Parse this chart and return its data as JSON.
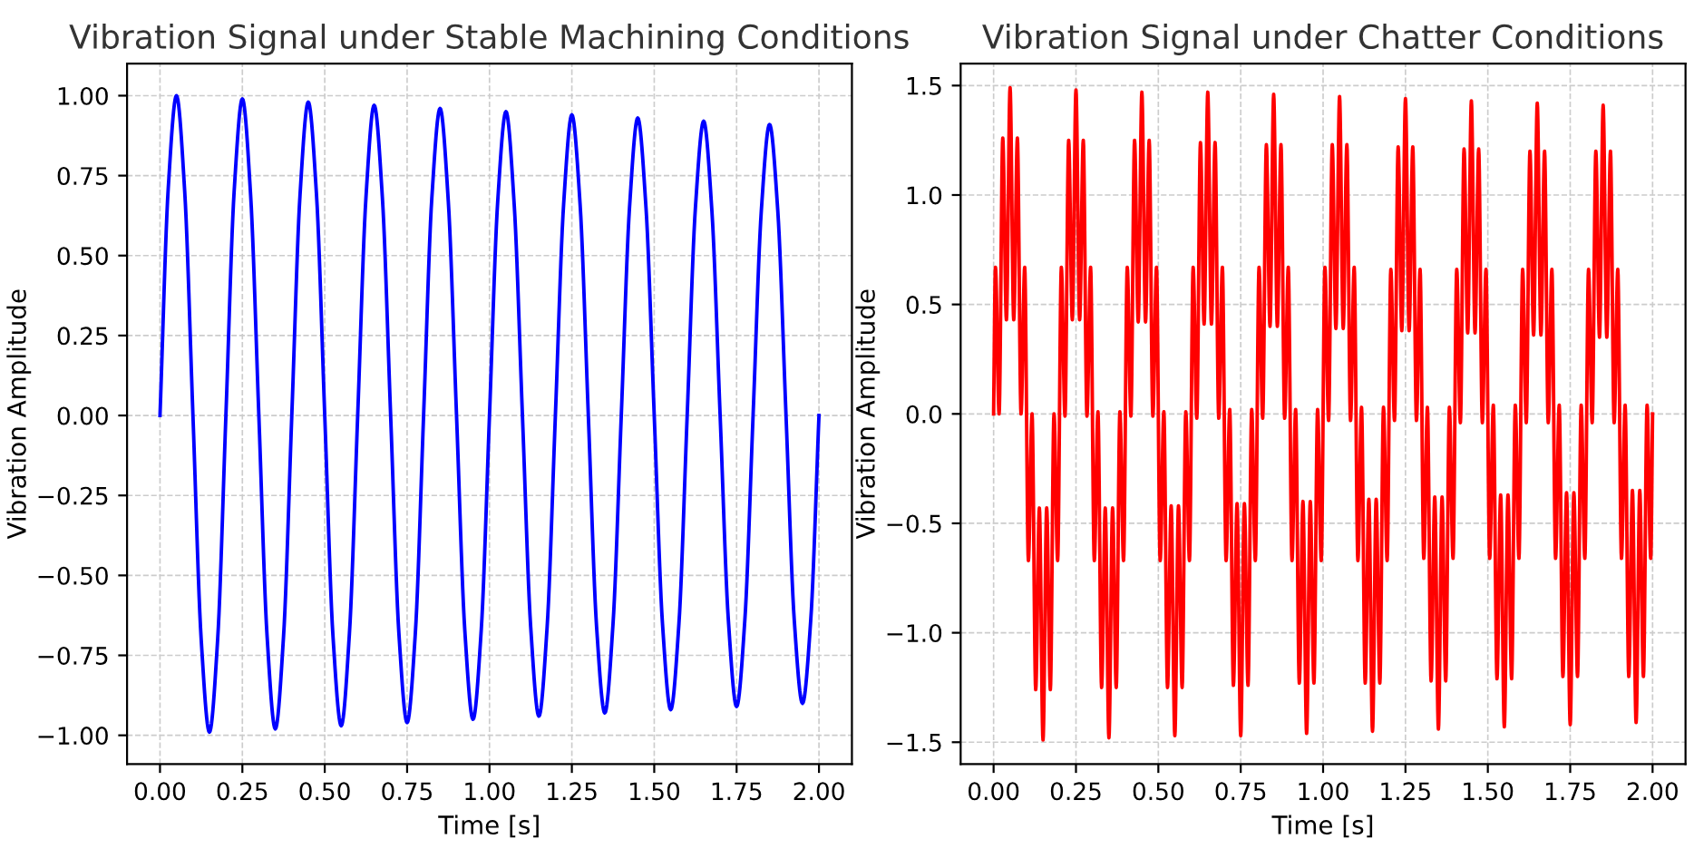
{
  "chart_data": [
    {
      "type": "line",
      "title": "Vibration Signal under Stable Machining Conditions",
      "xlabel": "Time [s]",
      "ylabel": "Vibration Amplitude",
      "grid": true,
      "line_style": "solid",
      "xlim": [
        -0.1,
        2.1
      ],
      "ylim": [
        -1.09,
        1.1
      ],
      "xticks": [
        {
          "value": 0,
          "label": "0.00"
        },
        {
          "value": 0.25,
          "label": "0.25"
        },
        {
          "value": 0.5,
          "label": "0.50"
        },
        {
          "value": 0.75,
          "label": "0.75"
        },
        {
          "value": 1,
          "label": "1.00"
        },
        {
          "value": 1.25,
          "label": "1.25"
        },
        {
          "value": 1.5,
          "label": "1.50"
        },
        {
          "value": 1.75,
          "label": "1.75"
        },
        {
          "value": 2,
          "label": "2.00"
        }
      ],
      "yticks": [
        {
          "value": -1,
          "label": "−1.00"
        },
        {
          "value": -0.75,
          "label": "−0.75"
        },
        {
          "value": -0.5,
          "label": "−0.50"
        },
        {
          "value": -0.25,
          "label": "−0.25"
        },
        {
          "value": 0,
          "label": "0.00"
        },
        {
          "value": 0.25,
          "label": "0.25"
        },
        {
          "value": 0.5,
          "label": "0.50"
        },
        {
          "value": 0.75,
          "label": "0.75"
        },
        {
          "value": 1,
          "label": "1.00"
        }
      ],
      "series": [
        {
          "color": "#0000ff",
          "x": [
            0,
            0.025,
            0.05,
            0.075,
            0.1,
            0.125,
            0.15,
            0.175,
            0.2,
            0.225,
            0.25,
            0.275,
            0.3,
            0.325,
            0.35,
            0.375,
            0.4,
            0.425,
            0.45,
            0.475,
            0.5,
            0.525,
            0.55,
            0.575,
            0.6,
            0.625,
            0.65,
            0.675,
            0.7,
            0.725,
            0.75,
            0.775,
            0.8,
            0.825,
            0.85,
            0.875,
            0.9,
            0.925,
            0.95,
            0.975,
            1.0,
            1.025,
            1.05,
            1.075,
            1.1,
            1.125,
            1.15,
            1.175,
            1.2,
            1.225,
            1.25,
            1.275,
            1.3,
            1.325,
            1.35,
            1.375,
            1.4,
            1.425,
            1.45,
            1.475,
            1.5,
            1.525,
            1.55,
            1.575,
            1.6,
            1.625,
            1.65,
            1.675,
            1.7,
            1.725,
            1.75,
            1.775,
            1.8,
            1.825,
            1.85,
            1.875,
            1.9,
            1.925,
            1.95,
            1.975,
            2.0
          ],
          "values": [
            0,
            0.71,
            1.0,
            0.7,
            0,
            -0.7,
            -0.99,
            -0.7,
            0,
            0.7,
            0.99,
            0.69,
            0,
            -0.69,
            -0.98,
            -0.69,
            0,
            0.69,
            0.98,
            0.69,
            0,
            -0.69,
            -0.97,
            -0.68,
            0,
            0.68,
            0.97,
            0.68,
            0,
            -0.68,
            -0.96,
            -0.68,
            0,
            0.68,
            0.96,
            0.67,
            0,
            -0.67,
            -0.95,
            -0.67,
            0,
            0.67,
            0.95,
            0.66,
            0,
            -0.66,
            -0.94,
            -0.66,
            0,
            0.66,
            0.94,
            0.66,
            0,
            -0.66,
            -0.93,
            -0.65,
            0,
            0.65,
            0.93,
            0.65,
            0,
            -0.65,
            -0.92,
            -0.65,
            0,
            0.65,
            0.92,
            0.64,
            0,
            -0.64,
            -0.91,
            -0.64,
            0,
            0.64,
            0.91,
            0.64,
            0,
            -0.64,
            -0.9,
            -0.64,
            0
          ]
        }
      ]
    },
    {
      "type": "line",
      "title": "Vibration Signal under Chatter Conditions",
      "xlabel": "Time [s]",
      "ylabel": "Vibration Amplitude",
      "grid": true,
      "line_style": "solid",
      "xlim": [
        -0.1,
        2.1
      ],
      "ylim": [
        -1.6,
        1.6
      ],
      "xticks": [
        {
          "value": 0,
          "label": "0.00"
        },
        {
          "value": 0.25,
          "label": "0.25"
        },
        {
          "value": 0.5,
          "label": "0.50"
        },
        {
          "value": 0.75,
          "label": "0.75"
        },
        {
          "value": 1,
          "label": "1.00"
        },
        {
          "value": 1.25,
          "label": "1.25"
        },
        {
          "value": 1.5,
          "label": "1.50"
        },
        {
          "value": 1.75,
          "label": "1.75"
        },
        {
          "value": 2,
          "label": "2.00"
        }
      ],
      "yticks": [
        {
          "value": -1.5,
          "label": "−1.5"
        },
        {
          "value": -1,
          "label": "−1.0"
        },
        {
          "value": -0.5,
          "label": "−0.5"
        },
        {
          "value": 0,
          "label": "0.0"
        },
        {
          "value": 0.5,
          "label": "0.5"
        },
        {
          "value": 1,
          "label": "1.0"
        },
        {
          "value": 1.5,
          "label": "1.5"
        }
      ],
      "series": [
        {
          "color": "#ff0000",
          "x": [
            0,
            0.0056,
            0.0167,
            0.0278,
            0.0389,
            0.05,
            0.0611,
            0.0722,
            0.0833,
            0.0944,
            0.1056,
            0.1167,
            0.1278,
            0.1389,
            0.15,
            0.1611,
            0.1722,
            0.1833,
            0.1944,
            0.2056,
            0.2167,
            0.2278,
            0.2389,
            0.25,
            0.2611,
            0.2722,
            0.2833,
            0.2944,
            0.3056,
            0.3167,
            0.3278,
            0.3389,
            0.35,
            0.3611,
            0.3722,
            0.3833,
            0.3944,
            0.4056,
            0.4167,
            0.4278,
            0.4389,
            0.45,
            0.4611,
            0.4722,
            0.4833,
            0.4944,
            0.5056,
            0.5167,
            0.5278,
            0.5389,
            0.55,
            0.5611,
            0.5722,
            0.5833,
            0.5944,
            0.6056,
            0.6167,
            0.6278,
            0.6389,
            0.65,
            0.6611,
            0.6722,
            0.6833,
            0.6944,
            0.7056,
            0.7167,
            0.7278,
            0.7389,
            0.75,
            0.7611,
            0.7722,
            0.7833,
            0.7944,
            0.8056,
            0.8167,
            0.8278,
            0.8389,
            0.85,
            0.8611,
            0.8722,
            0.8833,
            0.8944,
            0.9056,
            0.9167,
            0.9278,
            0.9389,
            0.95,
            0.9611,
            0.9722,
            0.9833,
            0.9944,
            1.0056,
            1.0167,
            1.0278,
            1.0389,
            1.05,
            1.0611,
            1.0722,
            1.0833,
            1.0944,
            1.1056,
            1.1167,
            1.1278,
            1.1389,
            1.15,
            1.1611,
            1.1722,
            1.1833,
            1.1944,
            1.2056,
            1.2167,
            1.2278,
            1.2389,
            1.25,
            1.2611,
            1.2722,
            1.2833,
            1.2944,
            1.3056,
            1.3167,
            1.3278,
            1.3389,
            1.35,
            1.3611,
            1.3722,
            1.3833,
            1.3944,
            1.4056,
            1.4167,
            1.4278,
            1.4389,
            1.45,
            1.4611,
            1.4722,
            1.4833,
            1.4944,
            1.5056,
            1.5167,
            1.5278,
            1.5389,
            1.55,
            1.5611,
            1.5722,
            1.5833,
            1.5944,
            1.6056,
            1.6167,
            1.6278,
            1.6389,
            1.65,
            1.6611,
            1.6722,
            1.6833,
            1.6944,
            1.7056,
            1.7167,
            1.7278,
            1.7389,
            1.75,
            1.7611,
            1.7722,
            1.7833,
            1.7944,
            1.8056,
            1.8167,
            1.8278,
            1.8389,
            1.85,
            1.8611,
            1.8722,
            1.8833,
            1.8944,
            1.9056,
            1.9167,
            1.9278,
            1.9389,
            1.95,
            1.9611,
            1.9722,
            1.9833,
            1.9944,
            2.0
          ],
          "values": [
            0,
            0.67,
            0.0,
            1.26,
            0.43,
            1.49,
            0.43,
            1.26,
            0.0,
            0.67,
            -0.67,
            0.0,
            -1.26,
            -0.43,
            -1.49,
            -0.43,
            -1.26,
            0.0,
            -0.67,
            0.67,
            -0.01,
            1.25,
            0.43,
            1.48,
            0.43,
            1.25,
            -0.01,
            0.67,
            -0.67,
            0.01,
            -1.25,
            -0.43,
            -1.48,
            -0.43,
            -1.25,
            0.01,
            -0.67,
            0.67,
            -0.01,
            1.25,
            0.42,
            1.47,
            0.42,
            1.25,
            -0.01,
            0.67,
            -0.67,
            0.01,
            -1.25,
            -0.42,
            -1.47,
            -0.42,
            -1.25,
            0.01,
            -0.67,
            0.67,
            -0.02,
            1.24,
            0.41,
            1.47,
            0.41,
            1.24,
            -0.02,
            0.67,
            -0.67,
            0.02,
            -1.24,
            -0.41,
            -1.47,
            -0.41,
            -1.24,
            0.02,
            -0.67,
            0.67,
            -0.02,
            1.23,
            0.4,
            1.46,
            0.4,
            1.23,
            -0.02,
            0.67,
            -0.67,
            0.02,
            -1.23,
            -0.4,
            -1.46,
            -0.4,
            -1.23,
            0.02,
            -0.67,
            0.67,
            -0.03,
            1.23,
            0.39,
            1.45,
            0.39,
            1.23,
            -0.03,
            0.67,
            -0.67,
            0.03,
            -1.23,
            -0.39,
            -1.45,
            -0.39,
            -1.23,
            0.03,
            -0.67,
            0.66,
            -0.03,
            1.22,
            0.38,
            1.44,
            0.38,
            1.22,
            -0.03,
            0.66,
            -0.66,
            0.03,
            -1.22,
            -0.38,
            -1.44,
            -0.38,
            -1.22,
            0.03,
            -0.66,
            0.66,
            -0.04,
            1.21,
            0.37,
            1.43,
            0.37,
            1.21,
            -0.04,
            0.66,
            -0.66,
            0.04,
            -1.21,
            -0.37,
            -1.43,
            -0.37,
            -1.21,
            0.04,
            -0.66,
            0.66,
            -0.04,
            1.2,
            0.36,
            1.42,
            0.36,
            1.2,
            -0.04,
            0.66,
            -0.66,
            0.04,
            -1.2,
            -0.36,
            -1.42,
            -0.36,
            -1.2,
            0.04,
            -0.66,
            0.66,
            -0.04,
            1.2,
            0.35,
            1.41,
            0.35,
            1.2,
            -0.04,
            0.66,
            -0.66,
            0.04,
            -1.2,
            -0.35,
            -1.41,
            -0.35,
            -1.2,
            0.04,
            -0.66,
            0
          ]
        }
      ]
    }
  ]
}
